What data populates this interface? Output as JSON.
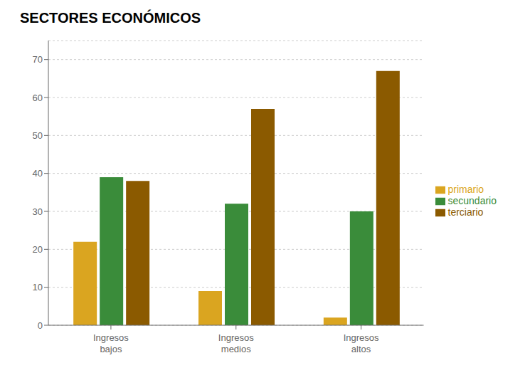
{
  "chart_data": {
    "type": "bar",
    "title": "SECTORES ECONÓMICOS",
    "categories": [
      "Ingresos\nbajos",
      "Ingresos\nmedios",
      "Ingresos\naltos"
    ],
    "series": [
      {
        "name": "primario",
        "color": "#DAA520",
        "values": [
          22,
          9,
          2
        ]
      },
      {
        "name": "secundario",
        "color": "#3A8C3A",
        "values": [
          39,
          32,
          30
        ]
      },
      {
        "name": "terciario",
        "color": "#8B5A00",
        "values": [
          38,
          57,
          67
        ]
      }
    ],
    "ylim": [
      0,
      75
    ],
    "yticks": [
      0,
      10,
      20,
      30,
      40,
      50,
      60,
      70
    ],
    "grid": true,
    "legend": "right"
  }
}
